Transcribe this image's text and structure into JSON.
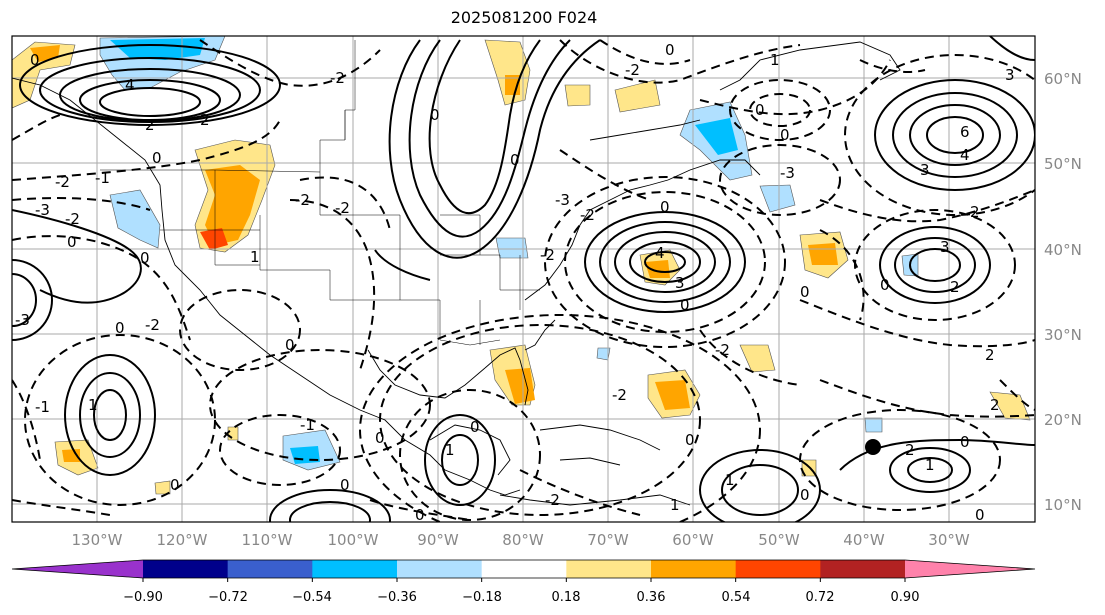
{
  "title": "2025081200 F024",
  "map": {
    "lon_labels": [
      "130°W",
      "120°W",
      "110°W",
      "100°W",
      "90°W",
      "80°W",
      "70°W",
      "60°W",
      "50°W",
      "40°W",
      "30°W"
    ],
    "lat_labels": [
      "60°N",
      "50°N",
      "40°N",
      "30°N",
      "20°N",
      "10°N"
    ],
    "contour_label_samples": [
      "0",
      "-1",
      "-2",
      "-3",
      "1",
      "2",
      "3",
      "4",
      "-4"
    ],
    "marker": {
      "lon": -40.5,
      "lat": 17.0
    }
  },
  "colorbar": {
    "ticks": [
      "−0.90",
      "−0.72",
      "−0.54",
      "−0.36",
      "−0.18",
      "0.18",
      "0.36",
      "0.54",
      "0.72",
      "0.90"
    ],
    "colors": [
      "#9932cc",
      "#00008b",
      "#3a5fcd",
      "#00bfff",
      "#b0e0ff",
      "#ffffff",
      "#ffe68a",
      "#ffa500",
      "#ff4500",
      "#b22222",
      "#ff82ab"
    ]
  }
}
